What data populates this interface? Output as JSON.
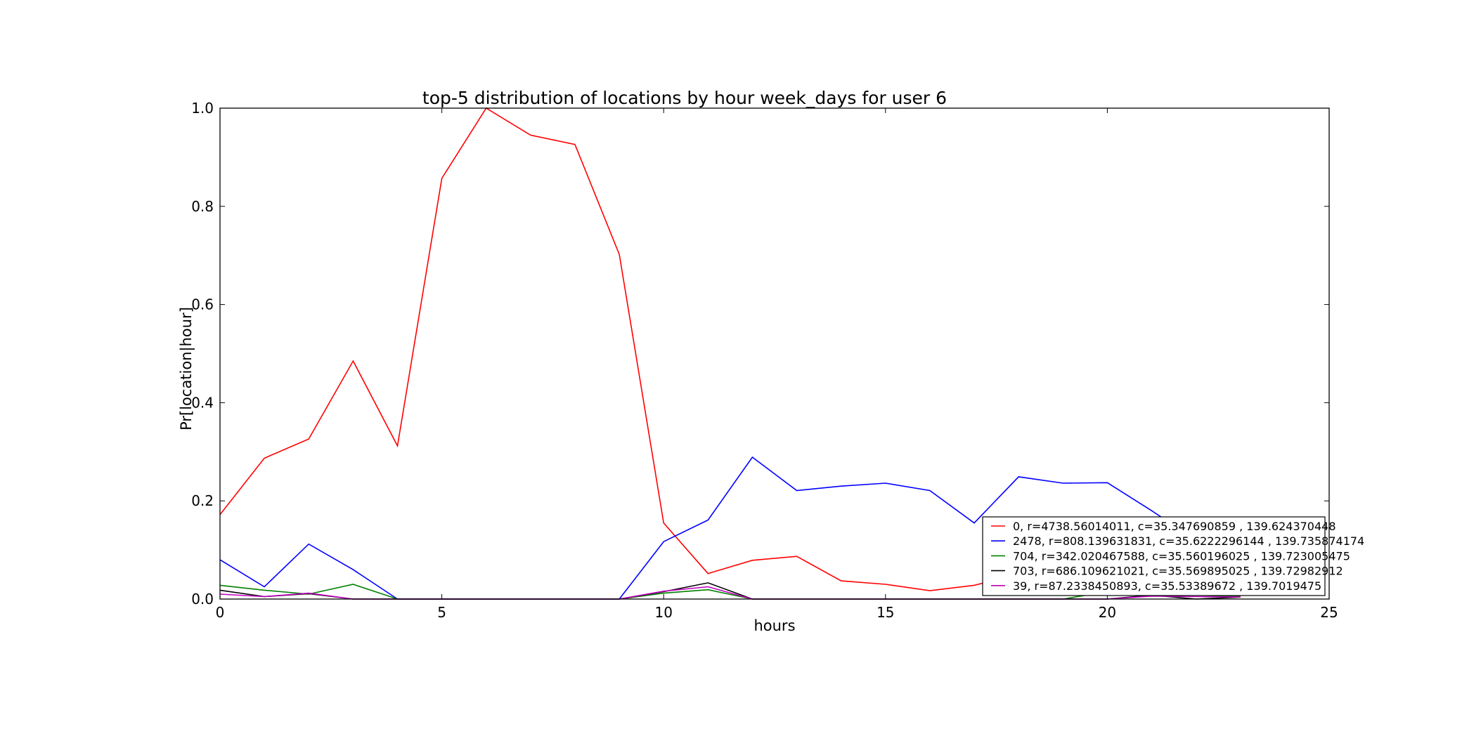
{
  "chart_data": {
    "type": "line",
    "title": "top-5 distribution of locations by hour week_days for user 6",
    "xlabel": "hours",
    "ylabel": "Pr[location|hour]",
    "xlim": [
      0,
      25
    ],
    "ylim": [
      0.0,
      1.0
    ],
    "xticks": [
      "0",
      "5",
      "10",
      "15",
      "20",
      "25"
    ],
    "yticks": [
      "0.0",
      "0.2",
      "0.4",
      "0.6",
      "0.8",
      "1.0"
    ],
    "grid": false,
    "legend_position": "lower-right",
    "x": [
      0,
      1,
      2,
      3,
      4,
      5,
      6,
      7,
      8,
      9,
      10,
      11,
      12,
      13,
      14,
      15,
      16,
      17,
      18,
      19,
      20,
      21,
      22,
      23
    ],
    "series": [
      {
        "name": "0, r=4738.56014011, c=35.347690859 , 139.624370448",
        "color": "#ff0000",
        "values": [
          0.172,
          0.287,
          0.326,
          0.485,
          0.312,
          0.857,
          1.0,
          0.945,
          0.926,
          0.702,
          0.155,
          0.052,
          0.079,
          0.087,
          0.037,
          0.03,
          0.017,
          0.028,
          0.05,
          0.03,
          0.02,
          0.015,
          0.01,
          0.005
        ]
      },
      {
        "name": "2478, r=808.139631831, c=35.6222296144 , 139.735874174",
        "color": "#0000ff",
        "values": [
          0.08,
          0.025,
          0.112,
          0.06,
          0.0,
          0.0,
          0.0,
          0.0,
          0.0,
          0.0,
          0.117,
          0.161,
          0.289,
          0.221,
          0.23,
          0.236,
          0.221,
          0.155,
          0.249,
          0.236,
          0.237,
          0.18,
          0.12,
          0.06
        ]
      },
      {
        "name": "704, r=342.020467588, c=35.560196025 , 139.723005475",
        "color": "#008000",
        "values": [
          0.028,
          0.018,
          0.01,
          0.03,
          0.0,
          0.0,
          0.0,
          0.0,
          0.0,
          0.0,
          0.012,
          0.019,
          0.0,
          0.0,
          0.0,
          0.0,
          0.0,
          0.0,
          0.0,
          0.0,
          0.015,
          0.01,
          0.008,
          0.005
        ]
      },
      {
        "name": "703, r=686.109621021, c=35.569895025 , 139.72982912",
        "color": "#000000",
        "values": [
          0.018,
          0.005,
          0.011,
          0.0,
          0.0,
          0.0,
          0.0,
          0.0,
          0.0,
          0.0,
          0.015,
          0.033,
          0.0,
          0.0,
          0.0,
          0.0,
          0.0,
          0.0,
          0.0,
          0.0,
          0.0,
          0.008,
          0.0,
          0.004
        ]
      },
      {
        "name": "39, r=87.2338450893, c=35.53389672 , 139.7019475",
        "color": "#bf00bf",
        "values": [
          0.01,
          0.005,
          0.012,
          0.0,
          0.0,
          0.0,
          0.0,
          0.0,
          0.0,
          0.0,
          0.016,
          0.025,
          0.0,
          0.0,
          0.0,
          0.0,
          0.0,
          0.0,
          0.0,
          0.0,
          0.0,
          0.006,
          0.005,
          0.004
        ]
      }
    ]
  }
}
